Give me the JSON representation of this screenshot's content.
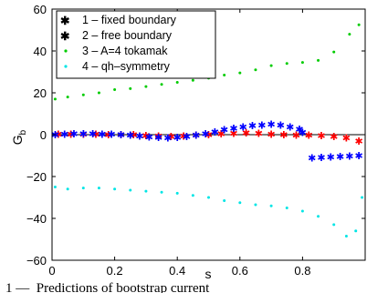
{
  "chart_data": {
    "type": "scatter",
    "title": "",
    "xlabel": "s",
    "ylabel": "G_b",
    "xlim": [
      0,
      1
    ],
    "ylim": [
      -60,
      60
    ],
    "xticks": [
      0,
      0.2,
      0.4,
      0.6,
      0.8
    ],
    "yticks": [
      -60,
      -40,
      -20,
      0,
      20,
      40,
      60
    ],
    "legend_position": "top-left",
    "grid": false,
    "zero_line": true,
    "series": [
      {
        "name": "1 – fixed boundary",
        "color": "#ff0000",
        "marker": "asterisk",
        "x": [
          0.02,
          0.06,
          0.1,
          0.14,
          0.18,
          0.22,
          0.26,
          0.3,
          0.34,
          0.38,
          0.42,
          0.46,
          0.5,
          0.54,
          0.58,
          0.62,
          0.66,
          0.7,
          0.74,
          0.78,
          0.82,
          0.86,
          0.9,
          0.94,
          0.98
        ],
        "y": [
          0.2,
          0.2,
          0.3,
          0.2,
          0.1,
          0,
          -0.1,
          -0.4,
          -0.7,
          -0.9,
          -0.7,
          -0.3,
          0.1,
          0.4,
          0.7,
          0.8,
          0.6,
          0.2,
          -0.1,
          -0.2,
          -0.3,
          -0.4,
          -0.8,
          -1.5,
          -3
        ]
      },
      {
        "name": "2 – free boundary",
        "color": "#0000ff",
        "marker": "asterisk",
        "x": [
          0.01,
          0.04,
          0.07,
          0.1,
          0.13,
          0.16,
          0.19,
          0.22,
          0.25,
          0.28,
          0.31,
          0.34,
          0.37,
          0.4,
          0.43,
          0.46,
          0.49,
          0.52,
          0.55,
          0.58,
          0.61,
          0.64,
          0.67,
          0.7,
          0.73,
          0.76,
          0.79,
          0.8,
          0.83,
          0.86,
          0.89,
          0.92,
          0.95,
          0.98
        ],
        "y": [
          0,
          0.3,
          0.5,
          0.5,
          0.4,
          0.3,
          0.2,
          0,
          -0.3,
          -0.6,
          -1,
          -1.3,
          -1.5,
          -1.3,
          -0.9,
          -0.3,
          0.5,
          1.4,
          2.3,
          3,
          3.8,
          4.3,
          4.6,
          5,
          4.6,
          3.8,
          2.6,
          1,
          -11,
          -10.8,
          -10.6,
          -10.4,
          -10.2,
          -10
        ]
      },
      {
        "name": "3 – A=4 tokamak",
        "color": "#00cc00",
        "marker": "dot",
        "x": [
          0.01,
          0.05,
          0.1,
          0.15,
          0.2,
          0.25,
          0.3,
          0.35,
          0.4,
          0.45,
          0.5,
          0.55,
          0.6,
          0.65,
          0.7,
          0.75,
          0.8,
          0.85,
          0.9,
          0.95,
          0.98
        ],
        "y": [
          17,
          18,
          19,
          20,
          21.5,
          22,
          23,
          24,
          25,
          26,
          27,
          28.5,
          29.5,
          31,
          33,
          34,
          34.5,
          35.5,
          39.5,
          48,
          52.5
        ]
      },
      {
        "name": "4 – qh–symmetry",
        "color": "#00e5e5",
        "marker": "dot",
        "x": [
          0.01,
          0.05,
          0.1,
          0.15,
          0.2,
          0.25,
          0.3,
          0.35,
          0.4,
          0.45,
          0.5,
          0.55,
          0.6,
          0.65,
          0.7,
          0.75,
          0.8,
          0.85,
          0.9,
          0.94,
          0.97,
          0.99
        ],
        "y": [
          -25,
          -26,
          -25.5,
          -25.5,
          -26,
          -26.5,
          -27,
          -27.5,
          -28,
          -29,
          -30,
          -31.5,
          -32.5,
          -33.5,
          -34,
          -35,
          -36.5,
          -39,
          -43,
          -48.5,
          -46,
          -30
        ]
      }
    ]
  },
  "caption_fragment": "1 —  Predictions of bootstrap current"
}
